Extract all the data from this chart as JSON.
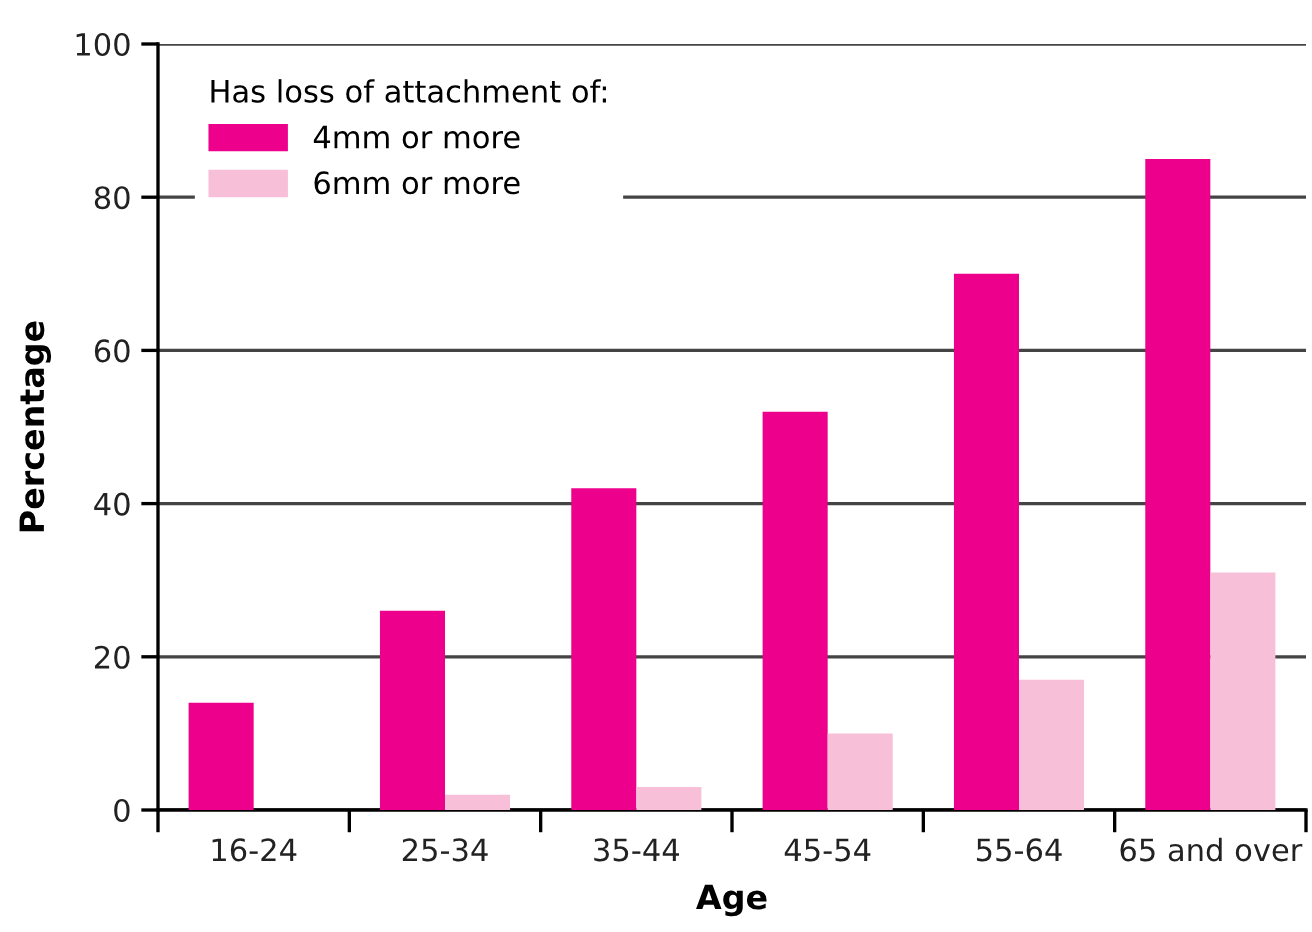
{
  "chart_data": {
    "type": "bar",
    "xlabel": "Age",
    "ylabel": "Percentage",
    "legend_title": "Has loss of attachment of:",
    "categories": [
      "16-24",
      "25-34",
      "35-44",
      "45-54",
      "55-64",
      "65 and over"
    ],
    "series": [
      {
        "name": "4mm or more",
        "color": "#ec008c",
        "values": [
          14,
          26,
          42,
          52,
          70,
          85
        ]
      },
      {
        "name": "6mm or more",
        "color": "#f7bfd8",
        "values": [
          null,
          2,
          3,
          10,
          17,
          31
        ]
      }
    ],
    "ylim": [
      0,
      100
    ],
    "yticks": [
      0,
      20,
      40,
      60,
      80,
      100
    ],
    "grid": "y",
    "legend": "top left"
  }
}
